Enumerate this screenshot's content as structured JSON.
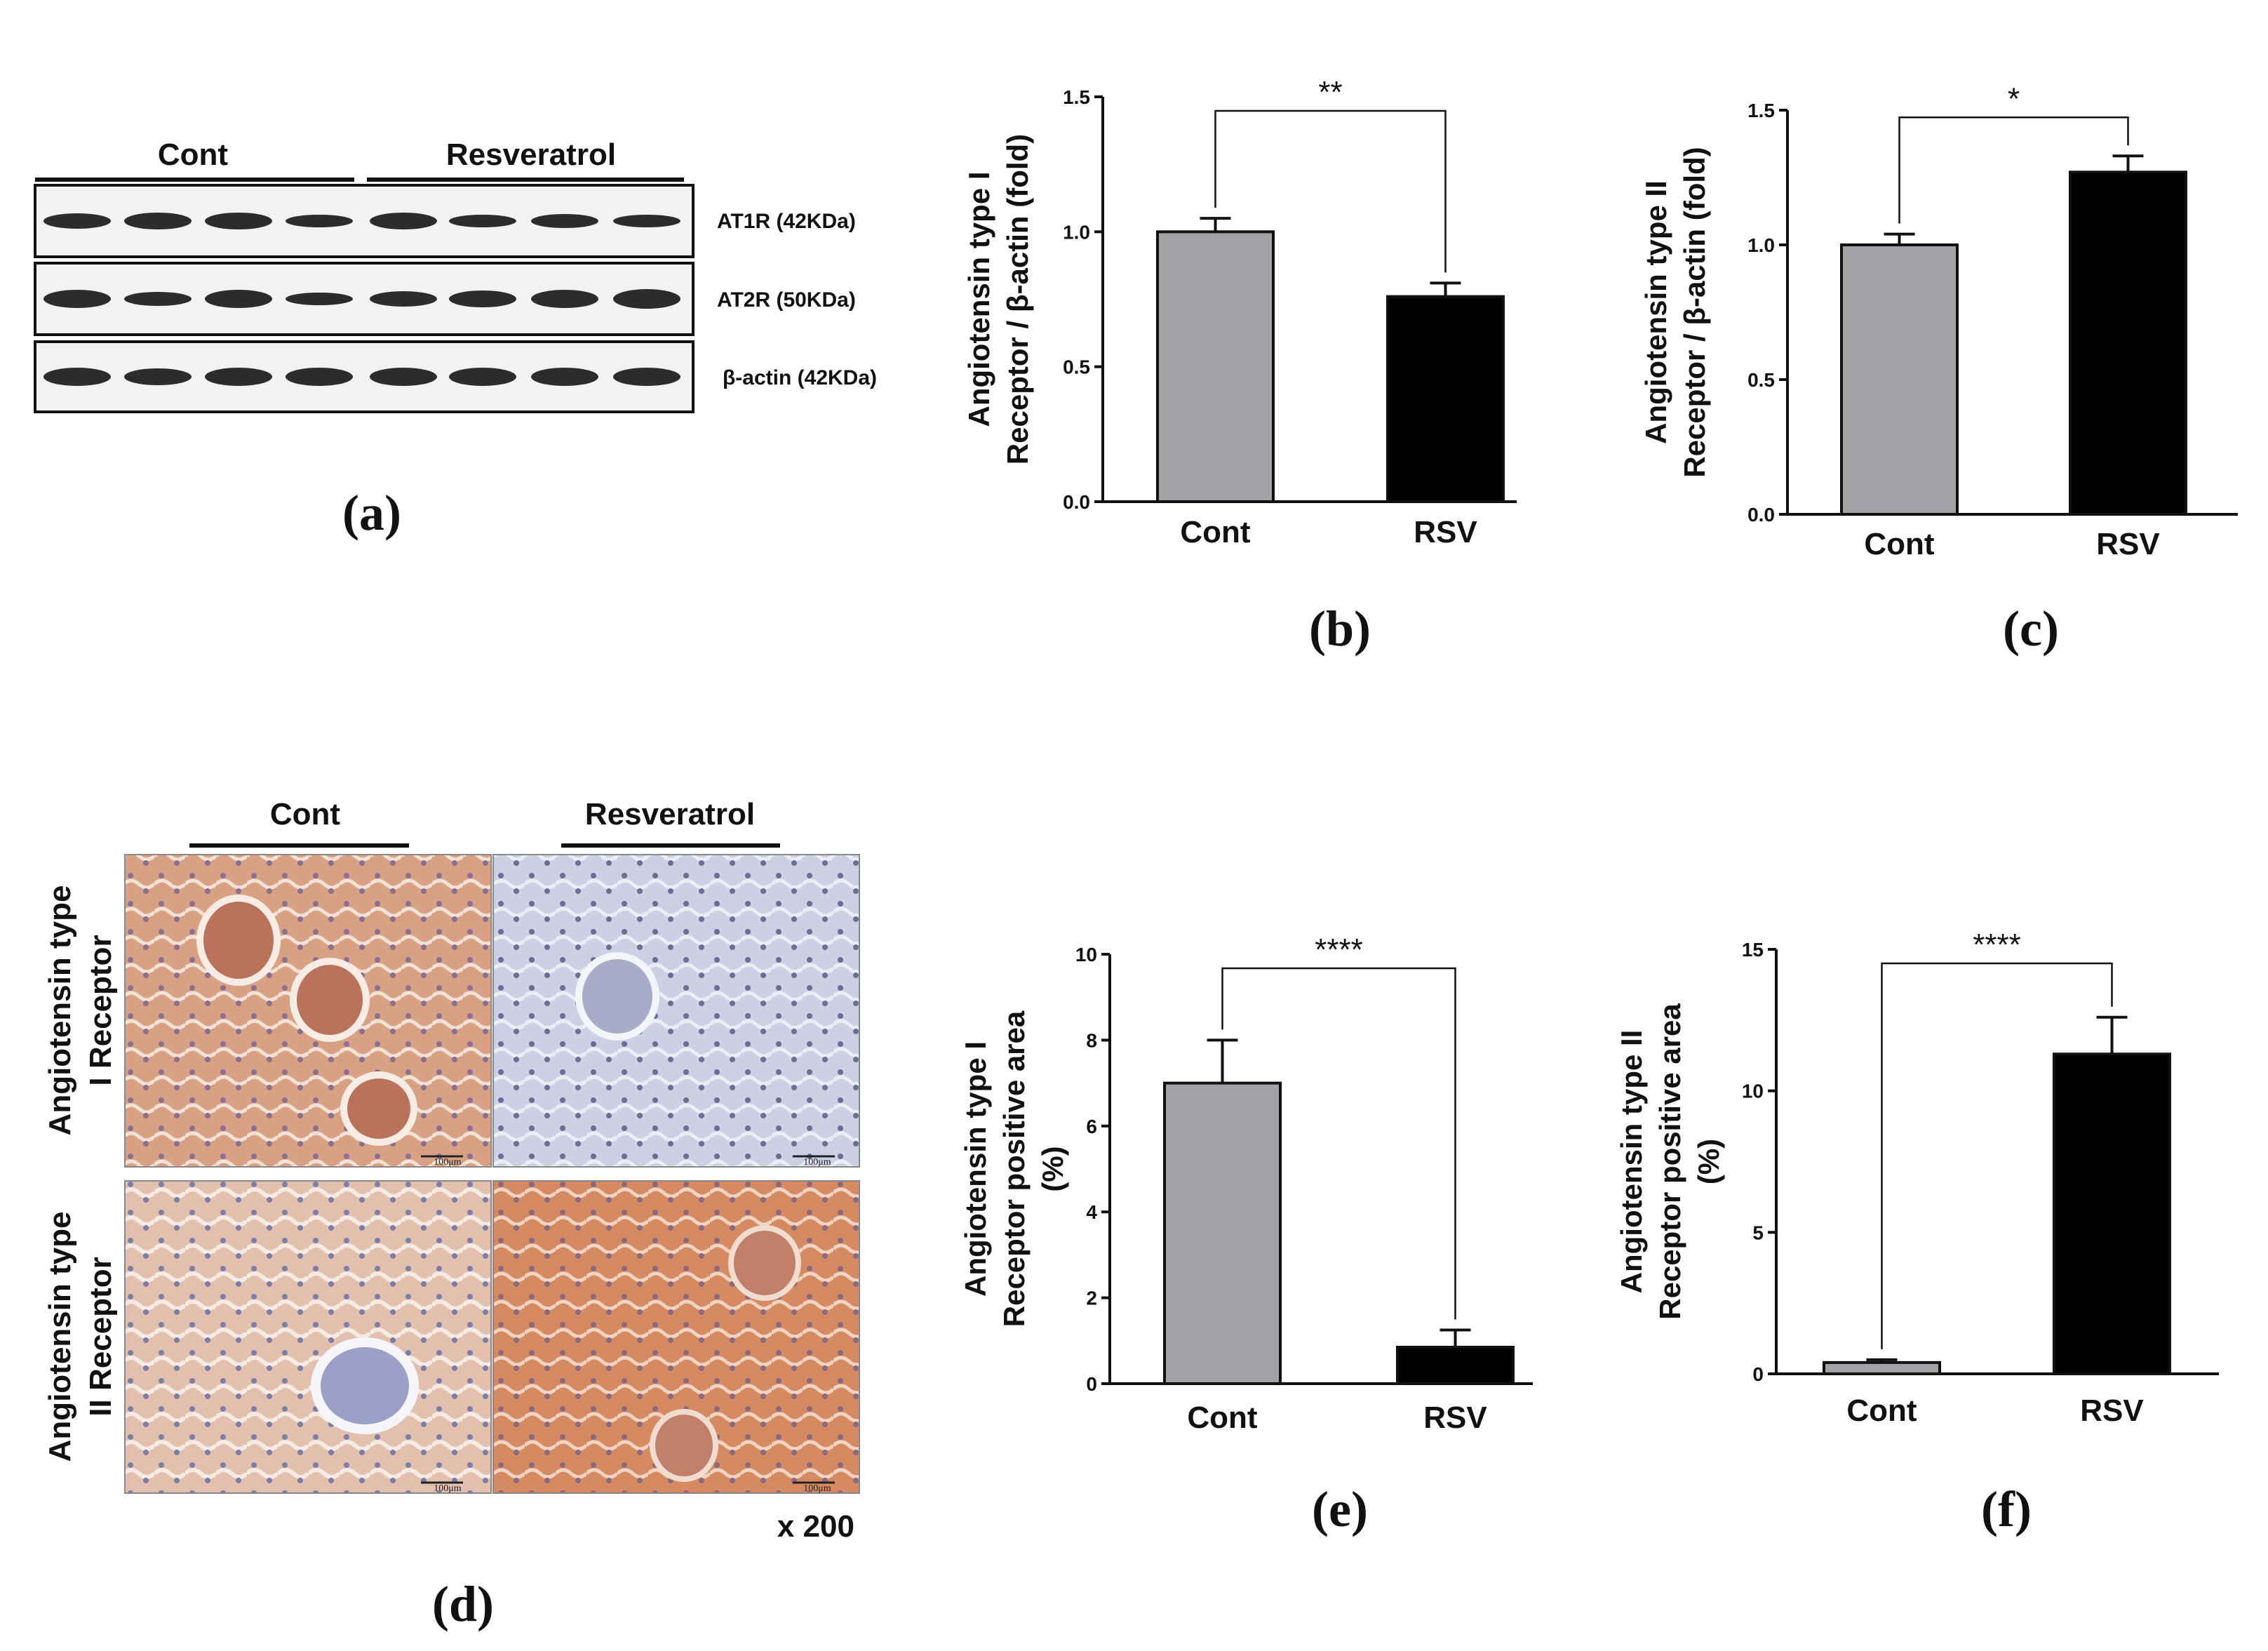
{
  "panels": {
    "a": "(a)",
    "b": "(b)",
    "c": "(c)",
    "d": "(d)",
    "e": "(e)",
    "f": "(f)"
  },
  "western_blot": {
    "groups": [
      "Cont",
      "Resveratrol"
    ],
    "bands": [
      "AT1R (42KDa)",
      "AT2R (50KDa)",
      "β-actin (42KDa)"
    ]
  },
  "histology": {
    "groups": [
      "Cont",
      "Resveratrol"
    ],
    "rows": [
      {
        "line1": "Angiotensin type",
        "line2": "I  Receptor"
      },
      {
        "line1": "Angiotensin type",
        "line2": "II Receptor"
      }
    ],
    "scale_bar": "100μm",
    "magnification": "x 200",
    "colors": {
      "brown_stain": "#c98a67",
      "blue_stain": "#c8cbe0",
      "nuclei": "#6a6f9a"
    }
  },
  "colors": {
    "cont_bar": "#a3a1a6",
    "rsv_bar": "#000000",
    "axis": "#111111"
  },
  "chart_data": [
    {
      "panel": "b",
      "type": "bar",
      "categories": [
        "Cont",
        "RSV"
      ],
      "values": [
        1.0,
        0.76
      ],
      "errors": [
        0.05,
        0.05
      ],
      "ylabel_line1": "Angiotensin type  I",
      "ylabel_line2": "Receptor / β-actin (fold)",
      "ylim": [
        0,
        1.5
      ],
      "yticks": [
        "0.0",
        "0.5",
        "1.0",
        "1.5"
      ],
      "significance": "**"
    },
    {
      "panel": "c",
      "type": "bar",
      "categories": [
        "Cont",
        "RSV"
      ],
      "values": [
        1.0,
        1.27
      ],
      "errors": [
        0.04,
        0.06
      ],
      "ylabel_line1": "Angiotensin type  II",
      "ylabel_line2": "Receptor / β-actin (fold)",
      "ylim": [
        0,
        1.5
      ],
      "yticks": [
        "0.0",
        "0.5",
        "1.0",
        "1.5"
      ],
      "significance": "*"
    },
    {
      "panel": "e",
      "type": "bar",
      "categories": [
        "Cont",
        "RSV"
      ],
      "values": [
        7.0,
        0.85
      ],
      "errors": [
        1.0,
        0.4
      ],
      "ylabel_line1": "Angiotensin type  I",
      "ylabel_line2": "Receptor positive area",
      "ylabel_line3": "(%)",
      "ylim": [
        0,
        10
      ],
      "yticks": [
        "0",
        "2",
        "4",
        "6",
        "8",
        "10"
      ],
      "significance": "****"
    },
    {
      "panel": "f",
      "type": "bar",
      "categories": [
        "Cont",
        "RSV"
      ],
      "values": [
        0.4,
        11.3
      ],
      "errors": [
        0.1,
        1.3
      ],
      "ylabel_line1": "Angiotensin type  II",
      "ylabel_line2": "Receptor positive area",
      "ylabel_line3": "(%)",
      "ylim": [
        0,
        15
      ],
      "yticks": [
        "0",
        "5",
        "10",
        "15"
      ],
      "significance": "****"
    }
  ]
}
